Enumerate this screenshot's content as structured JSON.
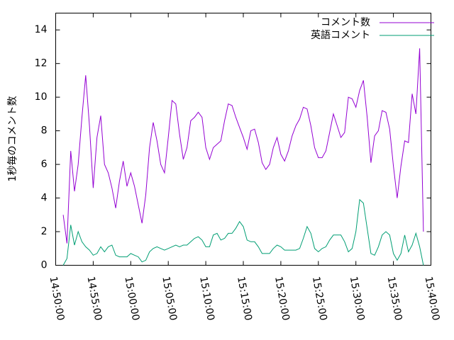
{
  "chart_data": {
    "type": "line",
    "y_label": "1秒毎のコメント数",
    "x": [
      "14:51:00",
      "14:51:30",
      "14:52:00",
      "14:52:30",
      "14:53:00",
      "14:53:30",
      "14:54:00",
      "14:54:30",
      "14:55:00",
      "14:55:30",
      "14:56:00",
      "14:56:30",
      "14:57:00",
      "14:57:30",
      "14:58:00",
      "14:58:30",
      "14:59:00",
      "14:59:30",
      "15:00:00",
      "15:00:30",
      "15:01:00",
      "15:01:30",
      "15:02:00",
      "15:02:30",
      "15:03:00",
      "15:03:30",
      "15:04:00",
      "15:04:30",
      "15:05:00",
      "15:05:30",
      "15:06:00",
      "15:06:30",
      "15:07:00",
      "15:07:30",
      "15:08:00",
      "15:08:30",
      "15:09:00",
      "15:09:30",
      "15:10:00",
      "15:10:30",
      "15:11:00",
      "15:11:30",
      "15:12:00",
      "15:12:30",
      "15:13:00",
      "15:13:30",
      "15:14:00",
      "15:14:30",
      "15:15:00",
      "15:15:30",
      "15:16:00",
      "15:16:30",
      "15:17:00",
      "15:17:30",
      "15:18:00",
      "15:18:30",
      "15:19:00",
      "15:19:30",
      "15:20:00",
      "15:20:30",
      "15:21:00",
      "15:21:30",
      "15:22:00",
      "15:22:30",
      "15:23:00",
      "15:23:30",
      "15:24:00",
      "15:24:30",
      "15:25:00",
      "15:25:30",
      "15:26:00",
      "15:26:30",
      "15:27:00",
      "15:27:30",
      "15:28:00",
      "15:28:30",
      "15:29:00",
      "15:29:30",
      "15:30:00",
      "15:30:30",
      "15:31:00",
      "15:31:30",
      "15:32:00",
      "15:32:30",
      "15:33:00",
      "15:33:30",
      "15:34:00",
      "15:34:30",
      "15:35:00",
      "15:35:30",
      "15:36:00",
      "15:36:30",
      "15:37:00",
      "15:37:30",
      "15:38:00",
      "15:38:30",
      "15:39:00"
    ],
    "series": [
      {
        "name": "コメント数",
        "color": "#9400d3",
        "values": [
          3.0,
          1.3,
          6.8,
          4.4,
          6.0,
          8.8,
          11.3,
          8.3,
          4.6,
          7.6,
          8.9,
          6.0,
          5.5,
          4.6,
          3.4,
          5.0,
          6.2,
          4.7,
          5.5,
          4.7,
          3.6,
          2.5,
          4.2,
          7.0,
          8.5,
          7.4,
          6.0,
          5.5,
          7.6,
          9.8,
          9.6,
          7.8,
          6.3,
          7.0,
          8.6,
          8.8,
          9.1,
          8.8,
          7.0,
          6.3,
          7.0,
          7.2,
          7.4,
          8.6,
          9.6,
          9.5,
          8.8,
          8.2,
          7.6,
          6.9,
          8.0,
          8.1,
          7.3,
          6.1,
          5.7,
          6.0,
          7.0,
          7.6,
          6.6,
          6.2,
          6.8,
          7.7,
          8.3,
          8.7,
          9.4,
          9.3,
          8.3,
          7.0,
          6.4,
          6.4,
          6.8,
          7.9,
          9.0,
          8.3,
          7.6,
          7.9,
          10.0,
          9.9,
          9.4,
          10.4,
          11.0,
          8.8,
          6.1,
          7.7,
          8.0,
          9.2,
          9.1,
          8.1,
          5.9,
          4.0,
          5.9,
          7.4,
          7.3,
          10.2,
          9.0,
          12.9,
          2.0
        ]
      },
      {
        "name": "英語コメント",
        "color": "#009e73",
        "values": [
          0.0,
          0.4,
          2.4,
          1.2,
          2.0,
          1.4,
          1.1,
          0.9,
          0.6,
          0.7,
          1.1,
          0.8,
          1.1,
          1.2,
          0.6,
          0.5,
          0.5,
          0.5,
          0.7,
          0.6,
          0.5,
          0.2,
          0.3,
          0.8,
          1.0,
          1.1,
          1.0,
          0.9,
          1.0,
          1.1,
          1.2,
          1.1,
          1.2,
          1.2,
          1.4,
          1.6,
          1.7,
          1.5,
          1.1,
          1.1,
          1.8,
          1.9,
          1.5,
          1.6,
          1.9,
          1.9,
          2.2,
          2.6,
          2.3,
          1.5,
          1.4,
          1.4,
          1.1,
          0.7,
          0.7,
          0.7,
          1.0,
          1.2,
          1.1,
          0.9,
          0.9,
          0.9,
          0.9,
          1.0,
          1.6,
          2.3,
          1.9,
          1.0,
          0.8,
          1.0,
          1.1,
          1.5,
          1.8,
          1.8,
          1.8,
          1.4,
          0.8,
          1.0,
          2.0,
          3.9,
          3.7,
          2.2,
          0.7,
          0.6,
          1.1,
          1.8,
          2.0,
          1.8,
          0.7,
          0.3,
          0.7,
          1.8,
          0.8,
          1.2,
          1.9,
          1.1,
          0.0
        ]
      }
    ],
    "xlim": [
      "14:50:00",
      "15:40:00"
    ],
    "xticks": [
      "14:50:00",
      "14:55:00",
      "15:00:00",
      "15:05:00",
      "15:10:00",
      "15:15:00",
      "15:20:00",
      "15:25:00",
      "15:30:00",
      "15:35:00",
      "15:40:00"
    ],
    "ylim": [
      0,
      15
    ],
    "yticks": [
      0,
      2,
      4,
      6,
      8,
      10,
      12,
      14
    ],
    "legend": "top-right"
  }
}
